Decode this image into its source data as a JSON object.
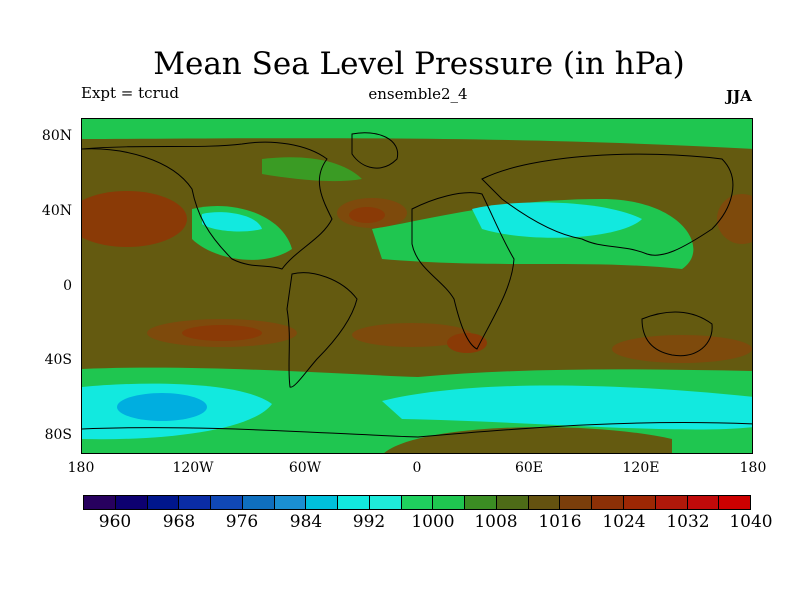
{
  "title": "Mean Sea Level Pressure (in hPa)",
  "expt": "Expt = tcrud",
  "run": "ensemble2_4",
  "season": "JJA",
  "lat_labels": [
    "80N",
    "40N",
    "0",
    "40S",
    "80S"
  ],
  "lon_labels": [
    "180",
    "120W",
    "60W",
    "0",
    "60E",
    "120E",
    "180"
  ],
  "colorbar": {
    "labels": [
      "960",
      "968",
      "976",
      "984",
      "992",
      "1000",
      "1008",
      "1016",
      "1024",
      "1032",
      "1040"
    ],
    "colors": [
      "#27005e",
      "#0d0070",
      "#00168c",
      "#0a2ca5",
      "#1048b5",
      "#0f6fbe",
      "#1a8fd1",
      "#00c0dc",
      "#12e9df",
      "#1eeada",
      "#1fd05e",
      "#1fc650",
      "#3b8d23",
      "#4d6b17",
      "#645210",
      "#7a3e0b",
      "#8c3006",
      "#9d2704",
      "#b0180a",
      "#c00a0a",
      "#cc0000"
    ]
  },
  "map_colors": {
    "background": "#645a10",
    "high": "#8a3a06",
    "mid_high": "#7e4a0c",
    "green_low": "#1fc650",
    "green_lower": "#3a9b24",
    "cyan_low": "#12e9df",
    "blue_low": "#00aee0",
    "coast": "#000000"
  }
}
